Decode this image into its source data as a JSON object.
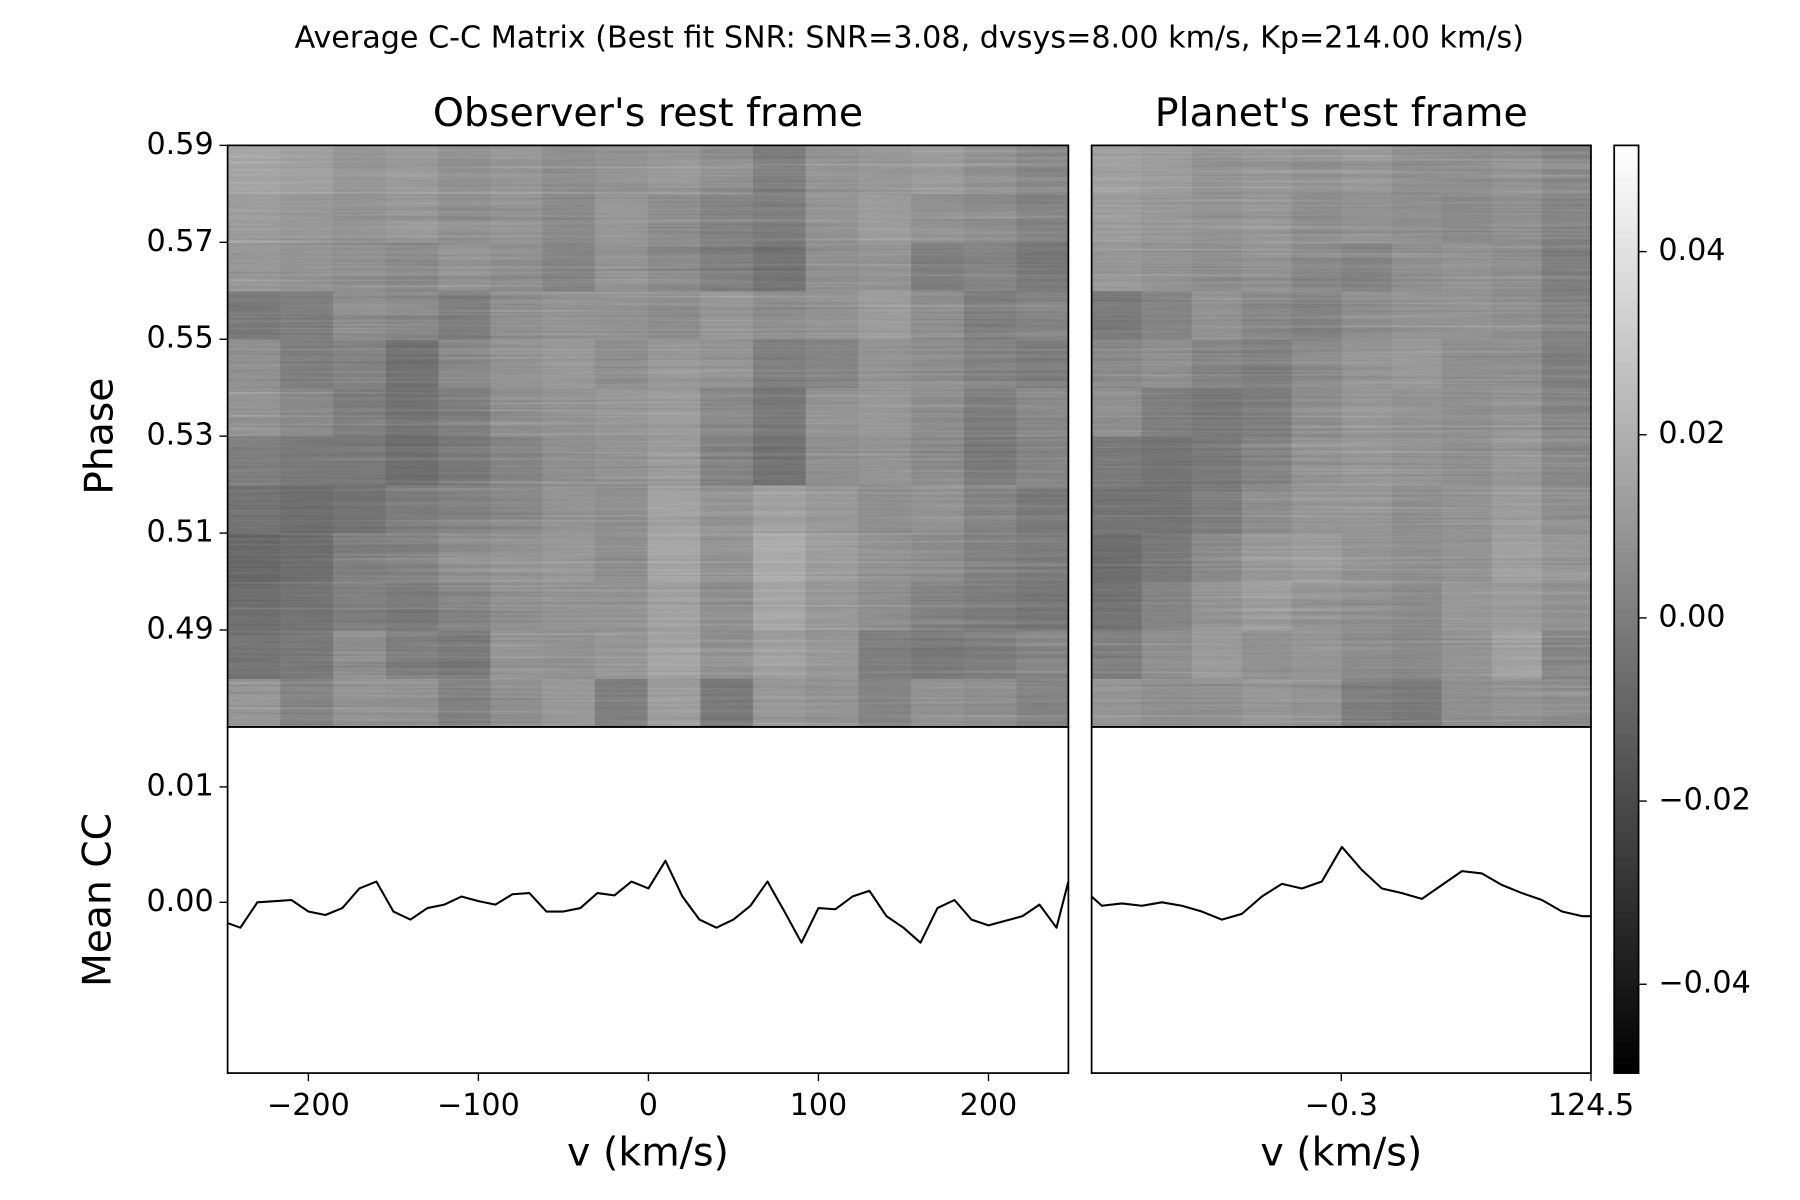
{
  "title": "Average C-C Matrix (Best fit SNR: SNR=3.08, dvsys=8.00 km/s, Kp=214.00 km/s)",
  "chart_data": [
    {
      "type": "heatmap",
      "title": "Observer's rest frame",
      "ylabel": "Phase",
      "cmap": "gray",
      "xlim": [
        -247.5,
        247
      ],
      "ylim": [
        0.47,
        0.59
      ],
      "yticks": [
        0.49,
        0.51,
        0.53,
        0.55,
        0.57,
        0.59
      ],
      "x": [
        -232,
        -201,
        -170,
        -139,
        -108,
        -78,
        -47,
        -16,
        15,
        46,
        77,
        108,
        139,
        170,
        201,
        232
      ],
      "y": [
        0.475,
        0.485,
        0.495,
        0.505,
        0.515,
        0.525,
        0.535,
        0.545,
        0.555,
        0.565,
        0.575,
        0.585
      ],
      "z": [
        [
          0.005,
          -0.002,
          0.004,
          0.003,
          -0.003,
          0.002,
          0.006,
          -0.004,
          0.008,
          -0.006,
          0.006,
          0.004,
          -0.002,
          0.003,
          0.001,
          -0.003
        ],
        [
          -0.008,
          -0.006,
          0.002,
          -0.004,
          -0.006,
          0.004,
          0.003,
          0.006,
          0.012,
          0.004,
          0.01,
          0.006,
          -0.004,
          -0.006,
          -0.005,
          -0.002
        ],
        [
          -0.01,
          -0.008,
          -0.004,
          -0.006,
          -0.002,
          0.002,
          0.004,
          0.004,
          0.01,
          0.002,
          0.012,
          0.006,
          0.002,
          -0.002,
          -0.004,
          -0.006
        ],
        [
          -0.012,
          -0.01,
          -0.004,
          -0.003,
          0.002,
          0.004,
          0.006,
          0.002,
          0.012,
          0.004,
          0.014,
          0.008,
          0.004,
          0.002,
          -0.002,
          -0.004
        ],
        [
          -0.008,
          -0.01,
          -0.008,
          -0.004,
          -0.002,
          0.0,
          0.004,
          0.002,
          0.01,
          0.004,
          0.01,
          0.006,
          0.002,
          0.004,
          -0.002,
          -0.006
        ],
        [
          -0.004,
          -0.006,
          -0.006,
          -0.01,
          -0.006,
          -0.002,
          0.002,
          0.004,
          0.008,
          -0.002,
          -0.008,
          0.002,
          0.004,
          0.0,
          -0.006,
          -0.002
        ],
        [
          0.004,
          0.0,
          -0.004,
          -0.008,
          -0.004,
          0.002,
          0.004,
          0.006,
          0.008,
          0.0,
          -0.006,
          0.004,
          0.006,
          0.002,
          -0.004,
          0.0
        ],
        [
          0.002,
          -0.004,
          -0.002,
          -0.008,
          0.0,
          0.004,
          0.006,
          0.002,
          0.006,
          0.004,
          -0.004,
          -0.002,
          0.004,
          0.002,
          -0.002,
          -0.004
        ],
        [
          -0.006,
          -0.004,
          0.002,
          0.0,
          -0.004,
          0.002,
          0.004,
          0.004,
          0.002,
          0.006,
          0.002,
          0.004,
          0.008,
          0.002,
          -0.004,
          -0.002
        ],
        [
          0.006,
          0.004,
          0.002,
          0.0,
          0.004,
          0.002,
          -0.002,
          0.004,
          0.0,
          -0.004,
          -0.008,
          0.002,
          0.004,
          -0.004,
          -0.002,
          -0.006
        ],
        [
          0.008,
          0.006,
          0.004,
          0.006,
          0.002,
          0.004,
          0.0,
          0.006,
          0.002,
          -0.002,
          -0.004,
          0.004,
          0.008,
          0.004,
          0.002,
          -0.002
        ],
        [
          0.012,
          0.01,
          0.006,
          0.008,
          0.004,
          0.006,
          0.002,
          0.004,
          0.006,
          0.002,
          -0.004,
          0.004,
          0.006,
          0.008,
          0.004,
          0.0
        ]
      ]
    },
    {
      "type": "heatmap",
      "title": "Planet's rest frame",
      "cmap": "gray",
      "xlim": [
        -125.1,
        124.5
      ],
      "ylim": [
        0.47,
        0.59
      ],
      "x": [
        -112.6,
        -87.6,
        -62.6,
        -37.6,
        -12.6,
        12.4,
        37.4,
        62.4,
        87.4,
        112.4
      ],
      "y": [
        0.475,
        0.485,
        0.495,
        0.505,
        0.515,
        0.525,
        0.535,
        0.545,
        0.555,
        0.565,
        0.575,
        0.585
      ],
      "z": [
        [
          0.004,
          0.002,
          0.003,
          0.006,
          0.004,
          -0.004,
          -0.006,
          0.002,
          0.004,
          0.002
        ],
        [
          -0.004,
          0.002,
          0.008,
          0.004,
          0.006,
          0.002,
          0.0,
          0.004,
          0.01,
          -0.002
        ],
        [
          -0.008,
          -0.002,
          0.004,
          0.008,
          0.004,
          0.002,
          0.0,
          0.006,
          0.008,
          0.004
        ],
        [
          -0.01,
          -0.006,
          0.0,
          0.006,
          0.008,
          0.004,
          0.002,
          0.004,
          0.01,
          0.006
        ],
        [
          -0.008,
          -0.008,
          -0.004,
          0.002,
          0.006,
          0.006,
          0.002,
          0.004,
          0.008,
          0.002
        ],
        [
          -0.006,
          -0.008,
          -0.006,
          -0.002,
          0.004,
          0.006,
          0.004,
          0.002,
          0.006,
          0.0
        ],
        [
          0.002,
          -0.004,
          -0.006,
          -0.004,
          0.002,
          0.006,
          0.004,
          0.002,
          0.004,
          -0.002
        ],
        [
          0.0,
          0.002,
          -0.002,
          -0.004,
          0.0,
          0.004,
          0.006,
          0.002,
          0.002,
          -0.004
        ],
        [
          -0.006,
          -0.002,
          0.004,
          0.0,
          -0.002,
          0.002,
          0.004,
          0.004,
          0.002,
          -0.002
        ],
        [
          0.006,
          0.004,
          0.002,
          0.004,
          0.0,
          -0.002,
          0.002,
          0.004,
          0.002,
          -0.004
        ],
        [
          0.008,
          0.006,
          0.004,
          0.006,
          0.002,
          0.004,
          0.002,
          0.0,
          0.002,
          -0.002
        ],
        [
          0.01,
          0.008,
          0.004,
          0.006,
          0.004,
          0.006,
          0.002,
          0.002,
          0.004,
          0.0
        ]
      ]
    },
    {
      "type": "line",
      "xlabel": "v (km/s)",
      "ylabel": "Mean CC",
      "color": "#000000",
      "xlim": [
        -247.5,
        247
      ],
      "ylim": [
        -0.0148,
        0.0152
      ],
      "xticks": [
        {
          "value": -200,
          "label": "−200"
        },
        {
          "value": -100,
          "label": "−100"
        },
        0,
        100,
        200
      ],
      "yticks": [
        {
          "value": 0,
          "label": "0.00"
        },
        0.01
      ],
      "x": [
        -247.5,
        -240,
        -230,
        -220,
        -210,
        -200,
        -190,
        -180,
        -170,
        -160,
        -150,
        -140,
        -130,
        -120,
        -110,
        -100,
        -90,
        -80,
        -70,
        -60,
        -50,
        -40,
        -30,
        -20,
        -10,
        0,
        10,
        20,
        30,
        40,
        50,
        60,
        70,
        80,
        90,
        100,
        110,
        120,
        130,
        140,
        150,
        160,
        170,
        180,
        190,
        200,
        210,
        220,
        230,
        240,
        247
      ],
      "values": [
        -0.0018,
        -0.0022,
        0.0,
        0.0001,
        0.0002,
        -0.0008,
        -0.0011,
        -0.0005,
        0.0012,
        0.0018,
        -0.0008,
        -0.0015,
        -0.0005,
        -0.0002,
        0.0005,
        0.0001,
        -0.0002,
        0.0007,
        0.0008,
        -0.0008,
        -0.0008,
        -0.0005,
        0.0008,
        0.0006,
        0.0018,
        0.0012,
        0.0036,
        0.0005,
        -0.0015,
        -0.0022,
        -0.0015,
        -0.0003,
        0.0018,
        -0.0008,
        -0.0035,
        -0.0005,
        -0.0006,
        0.0005,
        0.001,
        -0.0012,
        -0.0022,
        -0.0035,
        -0.0005,
        0.0002,
        -0.0015,
        -0.002,
        -0.0016,
        -0.0012,
        -0.0002,
        -0.0022,
        0.0018
      ]
    },
    {
      "type": "line",
      "xlabel": "v (km/s)",
      "color": "#000000",
      "xlim": [
        -125.1,
        124.5
      ],
      "ylim": [
        -0.0148,
        0.0152
      ],
      "xticks": [
        {
          "value": -0.3,
          "label": "−0.3"
        },
        124.5
      ],
      "x": [
        -125.1,
        -120,
        -110,
        -100,
        -90,
        -80,
        -70,
        -60,
        -50,
        -40,
        -30,
        -20,
        -10,
        0,
        10,
        20,
        30,
        40,
        50,
        60,
        70,
        80,
        90,
        100,
        110,
        120,
        124.5
      ],
      "values": [
        0.0005,
        -0.0003,
        -0.0001,
        -0.0003,
        0.0,
        -0.0003,
        -0.0008,
        -0.0015,
        -0.001,
        0.0005,
        0.0016,
        0.0012,
        0.0018,
        0.0048,
        0.0028,
        0.0012,
        0.0008,
        0.0003,
        0.0015,
        0.0027,
        0.0025,
        0.0015,
        0.0008,
        0.0002,
        -0.0008,
        -0.0012,
        -0.0012
      ]
    },
    {
      "type": "colorbar",
      "cmap": "gray",
      "clim": [
        -0.0497,
        0.0516
      ],
      "ticks": [
        {
          "value": -0.04,
          "label": "−0.04"
        },
        {
          "value": -0.02,
          "label": "−0.02"
        },
        {
          "value": 0,
          "label": "0.00"
        },
        0.02,
        0.04
      ]
    }
  ]
}
